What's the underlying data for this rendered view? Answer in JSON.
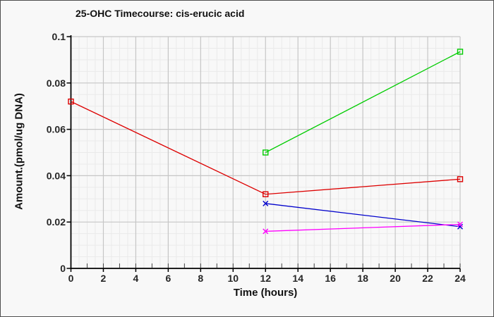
{
  "figure": {
    "background": "#f8f8f8",
    "border_color": "#4f4f4f"
  },
  "chart_data": {
    "type": "line",
    "title": "25-OHC Timecourse: cis-erucic acid",
    "xlabel": "Time (hours)",
    "ylabel": "Amount.(pmol/ug DNA)",
    "xlim": [
      0,
      24
    ],
    "ylim": [
      0,
      0.1
    ],
    "xticks": [
      0,
      2,
      4,
      6,
      8,
      10,
      12,
      14,
      16,
      18,
      20,
      22,
      24
    ],
    "xtick_labels": [
      "0",
      "2",
      "4",
      "6",
      "8",
      "10",
      "12",
      "14",
      "16",
      "18",
      "20",
      "22",
      "24"
    ],
    "yticks": [
      0,
      0.02,
      0.04,
      0.06,
      0.08,
      0.1
    ],
    "ytick_labels": [
      "0",
      "0.02",
      "0.04",
      "0.06",
      "0.08",
      "0.1"
    ],
    "minor_x_step": 0.5,
    "minor_y_step": 0.005,
    "minor_tick_x_step": 1,
    "grid": true,
    "legend": "none",
    "series": [
      {
        "name": "series-red",
        "color": "#dd0000",
        "marker": "square",
        "x": [
          0,
          12,
          24
        ],
        "y": [
          0.072,
          0.032,
          0.0385
        ]
      },
      {
        "name": "series-green",
        "color": "#00cc00",
        "marker": "square",
        "x": [
          12,
          24
        ],
        "y": [
          0.05,
          0.0935
        ]
      },
      {
        "name": "series-blue",
        "color": "#0000cc",
        "marker": "x",
        "x": [
          12,
          24
        ],
        "y": [
          0.028,
          0.018
        ]
      },
      {
        "name": "series-magenta",
        "color": "#ff00ff",
        "marker": "x",
        "x": [
          12,
          24
        ],
        "y": [
          0.016,
          0.019
        ]
      }
    ],
    "colors": {
      "axis": "#000000",
      "major_grid": "#c6c6c6",
      "minor_grid": "#eaeaea",
      "tick_text": "#262626",
      "title_text": "#111111",
      "minor_tick": "#444444"
    }
  }
}
